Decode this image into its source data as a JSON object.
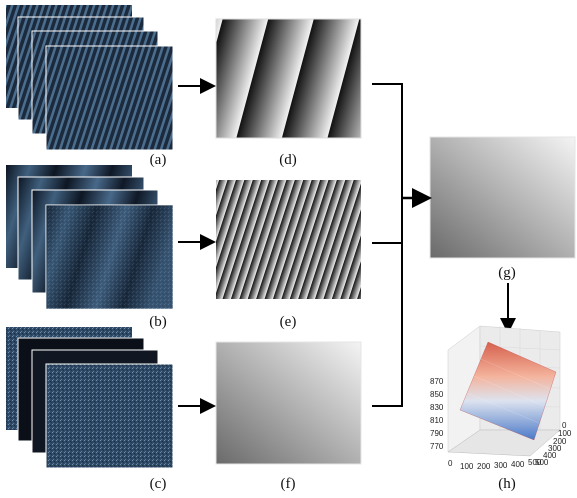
{
  "panels": {
    "a": "(a)",
    "b": "(b)",
    "c": "(c)",
    "d": "(d)",
    "e": "(e)",
    "f": "(f)",
    "g": "(g)",
    "h": "(h)"
  },
  "plot3d": {
    "z_ticks": [
      "870",
      "850",
      "830",
      "810",
      "790",
      "770"
    ],
    "x_ticks": [
      "0",
      "100",
      "200",
      "300",
      "400",
      "500"
    ],
    "y_ticks": [
      "0",
      "100",
      "200",
      "300",
      "400",
      "500"
    ]
  },
  "colors": {
    "fringe_dark": "#0b1220",
    "fringe_blue": "#3a5b7a",
    "surface_high": "#d6604d",
    "surface_low": "#4a78c8",
    "arrow": "#000000"
  }
}
